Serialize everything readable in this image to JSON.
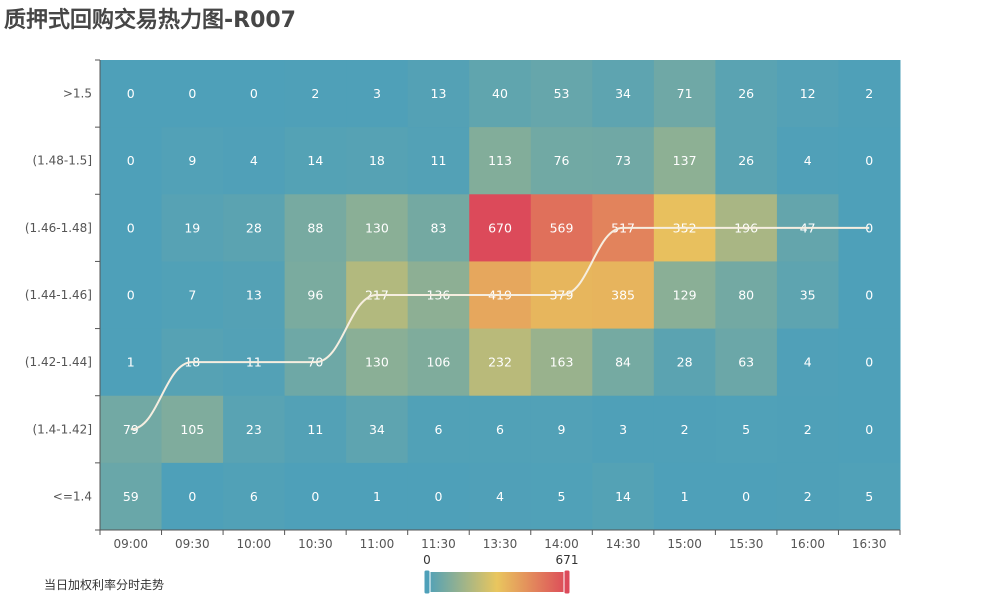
{
  "chart_data": {
    "type": "heatmap",
    "title": "质押式回购交易热力图-R007",
    "x_categories": [
      "09:00",
      "09:30",
      "10:00",
      "10:30",
      "11:00",
      "11:30",
      "13:30",
      "14:00",
      "14:30",
      "15:00",
      "15:30",
      "16:00",
      "16:30"
    ],
    "y_categories": [
      ">1.5",
      "(1.48-1.5]",
      "(1.46-1.48]",
      "(1.44-1.46]",
      "(1.42-1.44]",
      "(1.4-1.42]",
      "<=1.4"
    ],
    "values": [
      [
        0,
        0,
        0,
        2,
        3,
        13,
        40,
        53,
        34,
        71,
        26,
        12,
        2
      ],
      [
        0,
        9,
        4,
        14,
        18,
        11,
        113,
        76,
        73,
        137,
        26,
        4,
        0
      ],
      [
        0,
        19,
        28,
        88,
        130,
        83,
        670,
        569,
        517,
        352,
        196,
        47,
        0
      ],
      [
        0,
        7,
        13,
        96,
        217,
        136,
        419,
        379,
        385,
        129,
        80,
        35,
        0
      ],
      [
        1,
        18,
        11,
        70,
        130,
        106,
        232,
        163,
        84,
        28,
        63,
        4,
        0
      ],
      [
        79,
        105,
        23,
        11,
        34,
        6,
        6,
        9,
        3,
        2,
        5,
        2,
        0
      ],
      [
        59,
        0,
        6,
        0,
        1,
        0,
        4,
        5,
        14,
        1,
        0,
        2,
        5
      ]
    ],
    "visual_map": {
      "min": 0,
      "max": 671,
      "min_label": "0",
      "max_label": "671",
      "colors": [
        "#4ea0b9",
        "#e9c65e",
        "#dc4a5a"
      ]
    },
    "line_series": {
      "name": "当日加权利率分时走势",
      "color": "#f6eee0",
      "y_index": [
        5,
        4,
        4,
        4,
        3,
        3,
        3,
        3,
        2,
        2,
        2,
        2,
        2
      ]
    },
    "legend_position": "bottom-left",
    "grid": false
  }
}
